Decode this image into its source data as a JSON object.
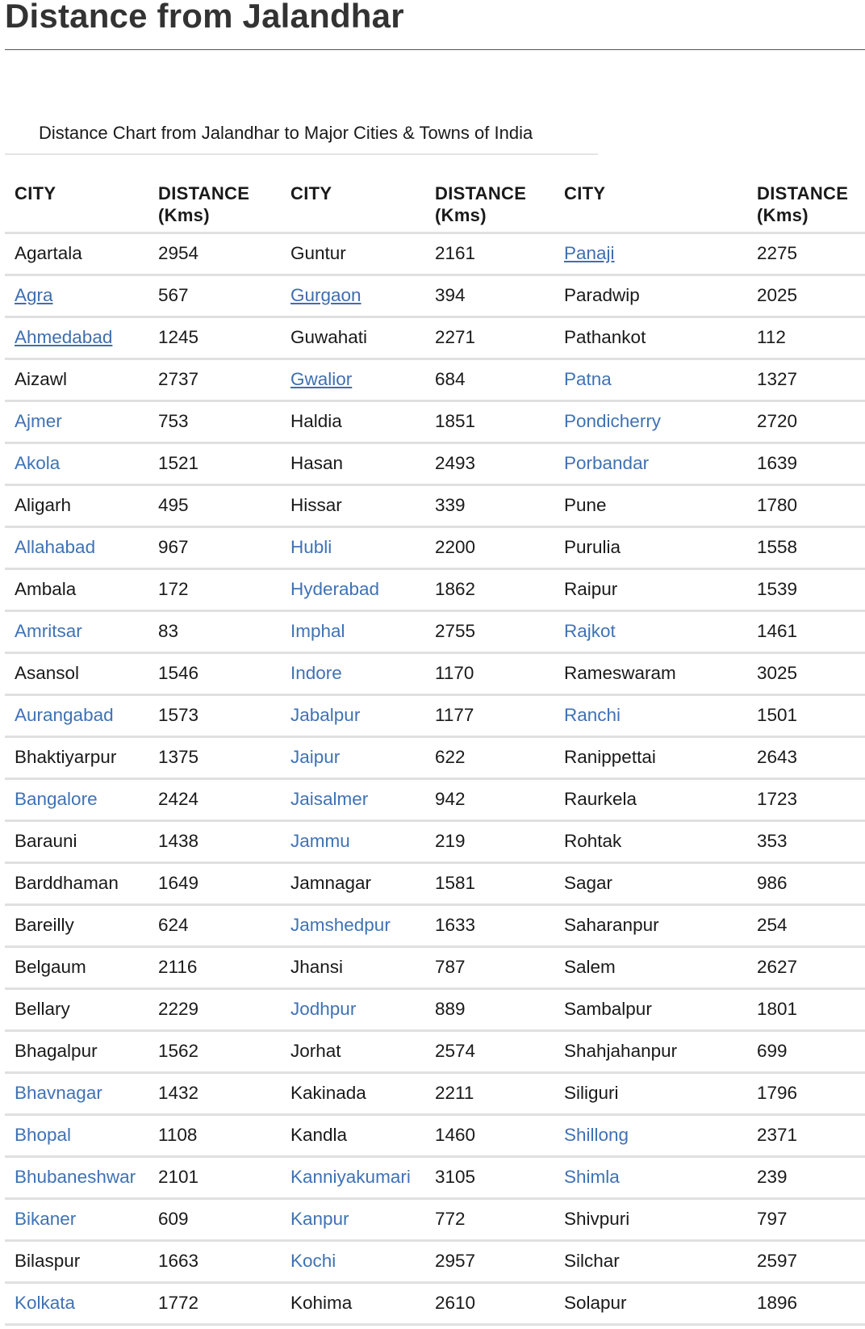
{
  "title": "Distance from Jalandhar",
  "caption": "Distance Chart from Jalandhar to Major Cities & Towns of India",
  "colors": {
    "link": "#3f72b5",
    "text": "#1a1a1a",
    "title": "#333333",
    "row_rule": "#e0e0e0"
  },
  "headers": [
    {
      "line1": "CITY",
      "line2": ""
    },
    {
      "line1": "DISTANCE",
      "line2": "(Kms)"
    },
    {
      "line1": "CITY",
      "line2": ""
    },
    {
      "line1": "DISTANCE",
      "line2": "(Kms)"
    },
    {
      "line1": "CITY",
      "line2": ""
    },
    {
      "line1": "DISTANCE",
      "line2": "(Kms)"
    }
  ],
  "rows": [
    [
      {
        "city": "Agartala",
        "link": false,
        "underline": false,
        "km": "2954"
      },
      {
        "city": "Guntur",
        "link": false,
        "underline": false,
        "km": "2161"
      },
      {
        "city": "Panaji",
        "link": true,
        "underline": true,
        "km": "2275"
      }
    ],
    [
      {
        "city": "Agra",
        "link": true,
        "underline": true,
        "km": "567"
      },
      {
        "city": "Gurgaon",
        "link": true,
        "underline": true,
        "km": "394"
      },
      {
        "city": "Paradwip",
        "link": false,
        "underline": false,
        "km": "2025"
      }
    ],
    [
      {
        "city": "Ahmedabad",
        "link": true,
        "underline": true,
        "km": "1245"
      },
      {
        "city": "Guwahati",
        "link": false,
        "underline": false,
        "km": "2271"
      },
      {
        "city": "Pathankot",
        "link": false,
        "underline": false,
        "km": "112"
      }
    ],
    [
      {
        "city": "Aizawl",
        "link": false,
        "underline": false,
        "km": "2737"
      },
      {
        "city": "Gwalior",
        "link": true,
        "underline": true,
        "km": "684"
      },
      {
        "city": "Patna",
        "link": true,
        "underline": false,
        "km": "1327"
      }
    ],
    [
      {
        "city": "Ajmer",
        "link": true,
        "underline": false,
        "km": "753"
      },
      {
        "city": "Haldia",
        "link": false,
        "underline": false,
        "km": "1851"
      },
      {
        "city": "Pondicherry",
        "link": true,
        "underline": false,
        "km": "2720"
      }
    ],
    [
      {
        "city": "Akola",
        "link": true,
        "underline": false,
        "km": "1521"
      },
      {
        "city": "Hasan",
        "link": false,
        "underline": false,
        "km": "2493"
      },
      {
        "city": "Porbandar",
        "link": true,
        "underline": false,
        "km": "1639"
      }
    ],
    [
      {
        "city": "Aligarh",
        "link": false,
        "underline": false,
        "km": "495"
      },
      {
        "city": "Hissar",
        "link": false,
        "underline": false,
        "km": "339"
      },
      {
        "city": "Pune",
        "link": false,
        "underline": false,
        "km": "1780"
      }
    ],
    [
      {
        "city": "Allahabad",
        "link": true,
        "underline": false,
        "km": "967"
      },
      {
        "city": "Hubli",
        "link": true,
        "underline": false,
        "km": "2200"
      },
      {
        "city": "Purulia",
        "link": false,
        "underline": false,
        "km": "1558"
      }
    ],
    [
      {
        "city": "Ambala",
        "link": false,
        "underline": false,
        "km": "172"
      },
      {
        "city": "Hyderabad",
        "link": true,
        "underline": false,
        "km": "1862"
      },
      {
        "city": "Raipur",
        "link": false,
        "underline": false,
        "km": "1539"
      }
    ],
    [
      {
        "city": "Amritsar",
        "link": true,
        "underline": false,
        "km": "83"
      },
      {
        "city": "Imphal",
        "link": true,
        "underline": false,
        "km": "2755"
      },
      {
        "city": "Rajkot",
        "link": true,
        "underline": false,
        "km": "1461"
      }
    ],
    [
      {
        "city": "Asansol",
        "link": false,
        "underline": false,
        "km": "1546"
      },
      {
        "city": "Indore",
        "link": true,
        "underline": false,
        "km": "1170"
      },
      {
        "city": "Rameswaram",
        "link": false,
        "underline": false,
        "km": "3025"
      }
    ],
    [
      {
        "city": "Aurangabad",
        "link": true,
        "underline": false,
        "km": "1573"
      },
      {
        "city": "Jabalpur",
        "link": true,
        "underline": false,
        "km": "1177"
      },
      {
        "city": "Ranchi",
        "link": true,
        "underline": false,
        "km": "1501"
      }
    ],
    [
      {
        "city": "Bhaktiyarpur",
        "link": false,
        "underline": false,
        "km": "1375"
      },
      {
        "city": "Jaipur",
        "link": true,
        "underline": false,
        "km": "622"
      },
      {
        "city": "Ranippettai",
        "link": false,
        "underline": false,
        "km": "2643"
      }
    ],
    [
      {
        "city": "Bangalore",
        "link": true,
        "underline": false,
        "km": "2424"
      },
      {
        "city": "Jaisalmer",
        "link": true,
        "underline": false,
        "km": "942"
      },
      {
        "city": "Raurkela",
        "link": false,
        "underline": false,
        "km": "1723"
      }
    ],
    [
      {
        "city": "Barauni",
        "link": false,
        "underline": false,
        "km": "1438"
      },
      {
        "city": "Jammu",
        "link": true,
        "underline": false,
        "km": "219"
      },
      {
        "city": "Rohtak",
        "link": false,
        "underline": false,
        "km": "353"
      }
    ],
    [
      {
        "city": "Barddhaman",
        "link": false,
        "underline": false,
        "km": "1649"
      },
      {
        "city": "Jamnagar",
        "link": false,
        "underline": false,
        "km": "1581"
      },
      {
        "city": "Sagar",
        "link": false,
        "underline": false,
        "km": "986"
      }
    ],
    [
      {
        "city": "Bareilly",
        "link": false,
        "underline": false,
        "km": "624"
      },
      {
        "city": "Jamshedpur",
        "link": true,
        "underline": false,
        "km": "1633"
      },
      {
        "city": "Saharanpur",
        "link": false,
        "underline": false,
        "km": "254"
      }
    ],
    [
      {
        "city": "Belgaum",
        "link": false,
        "underline": false,
        "km": "2116"
      },
      {
        "city": "Jhansi",
        "link": false,
        "underline": false,
        "km": "787"
      },
      {
        "city": "Salem",
        "link": false,
        "underline": false,
        "km": "2627"
      }
    ],
    [
      {
        "city": "Bellary",
        "link": false,
        "underline": false,
        "km": "2229"
      },
      {
        "city": "Jodhpur",
        "link": true,
        "underline": false,
        "km": "889"
      },
      {
        "city": "Sambalpur",
        "link": false,
        "underline": false,
        "km": "1801"
      }
    ],
    [
      {
        "city": "Bhagalpur",
        "link": false,
        "underline": false,
        "km": "1562"
      },
      {
        "city": "Jorhat",
        "link": false,
        "underline": false,
        "km": "2574"
      },
      {
        "city": "Shahjahanpur",
        "link": false,
        "underline": false,
        "km": "699"
      }
    ],
    [
      {
        "city": "Bhavnagar",
        "link": true,
        "underline": false,
        "km": "1432"
      },
      {
        "city": "Kakinada",
        "link": false,
        "underline": false,
        "km": "2211"
      },
      {
        "city": "Siliguri",
        "link": false,
        "underline": false,
        "km": "1796"
      }
    ],
    [
      {
        "city": "Bhopal",
        "link": true,
        "underline": false,
        "km": "1108"
      },
      {
        "city": "Kandla",
        "link": false,
        "underline": false,
        "km": "1460"
      },
      {
        "city": "Shillong",
        "link": true,
        "underline": false,
        "km": "2371"
      }
    ],
    [
      {
        "city": "Bhubaneshwar",
        "link": true,
        "underline": false,
        "km": "2101"
      },
      {
        "city": "Kanniyakumari",
        "link": true,
        "underline": false,
        "km": "3105"
      },
      {
        "city": "Shimla",
        "link": true,
        "underline": false,
        "km": "239"
      }
    ],
    [
      {
        "city": "Bikaner",
        "link": true,
        "underline": false,
        "km": "609"
      },
      {
        "city": "Kanpur",
        "link": true,
        "underline": false,
        "km": "772"
      },
      {
        "city": "Shivpuri",
        "link": false,
        "underline": false,
        "km": "797"
      }
    ],
    [
      {
        "city": "Bilaspur",
        "link": false,
        "underline": false,
        "km": "1663"
      },
      {
        "city": "Kochi",
        "link": true,
        "underline": false,
        "km": "2957"
      },
      {
        "city": "Silchar",
        "link": false,
        "underline": false,
        "km": "2597"
      }
    ],
    [
      {
        "city": "Kolkata",
        "link": true,
        "underline": false,
        "km": "1772"
      },
      {
        "city": "Kohima",
        "link": false,
        "underline": false,
        "km": "2610"
      },
      {
        "city": "Solapur",
        "link": false,
        "underline": false,
        "km": "1896"
      }
    ]
  ]
}
